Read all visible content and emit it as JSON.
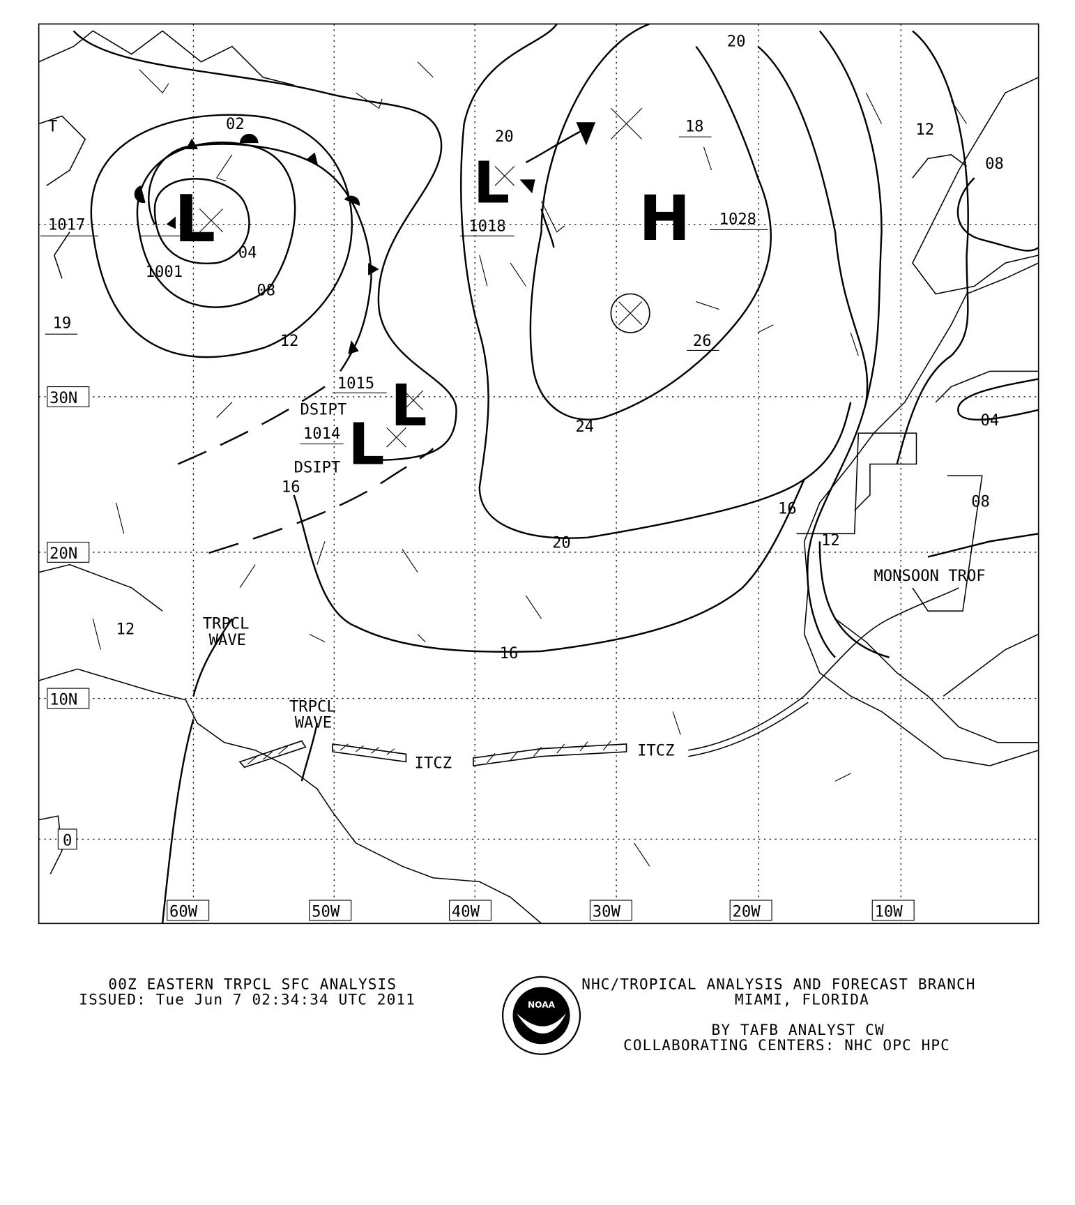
{
  "map": {
    "longitude_labels": [
      "60W",
      "50W",
      "40W",
      "30W",
      "20W",
      "10W"
    ],
    "latitude_labels": [
      "30N",
      "20N",
      "10N",
      "0"
    ],
    "isobar_labels": {
      "i02": "02",
      "i04": "04",
      "i08": "08",
      "i12": "12",
      "i1001": "1001",
      "i1017": "1017",
      "i19": "19",
      "i1015": "1015",
      "i1014": "1014",
      "i16": "16",
      "i1018": "1018",
      "i20a": "20",
      "i24": "24",
      "i20b": "20",
      "i16b": "16",
      "i20top": "20",
      "i18": "18",
      "i1028": "1028",
      "i26": "26",
      "i12e": "12",
      "i08e": "08",
      "i04e": "04",
      "i08s": "08",
      "i16e": "16",
      "i12s": "12",
      "i12c": "12"
    },
    "features": {
      "dsipt1": "DSIPT",
      "dsipt2": "DSIPT",
      "trpcl_wave1_a": "TRPCL",
      "trpcl_wave1_b": "WAVE",
      "trpcl_wave2_a": "TRPCL",
      "trpcl_wave2_b": "WAVE",
      "itcz1": "ITCZ",
      "itcz2": "ITCZ",
      "monsoon": "MONSOON TROF",
      "partial_t": "T"
    },
    "pressure_centers": {
      "low": "L",
      "high": "H"
    }
  },
  "footer": {
    "title": "00Z EASTERN TRPCL SFC ANALYSIS",
    "issued": "ISSUED:  Tue Jun 7 02:34:34 UTC 2011",
    "org": "NHC/TROPICAL ANALYSIS AND FORECAST BRANCH",
    "location": "MIAMI,   FLORIDA",
    "analyst": "BY TAFB ANALYST  CW",
    "centers": "COLLABORATING CENTERS: NHC OPC HPC",
    "logo_text": "NOAA"
  }
}
